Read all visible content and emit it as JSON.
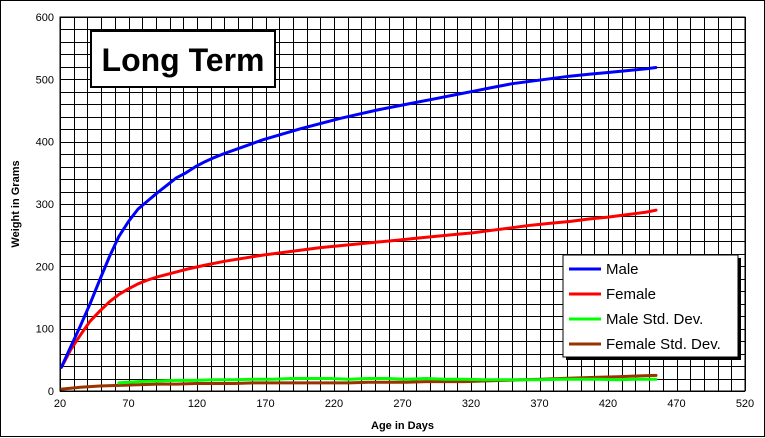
{
  "chart_data": {
    "type": "line",
    "title": "Long Term",
    "xlabel": "Age in Days",
    "ylabel": "Weight in Grams",
    "xlim": [
      20,
      520
    ],
    "ylim": [
      0,
      600
    ],
    "x_ticks": [
      20,
      70,
      120,
      170,
      220,
      270,
      320,
      370,
      420,
      470,
      520
    ],
    "y_ticks": [
      0,
      100,
      200,
      300,
      400,
      500,
      600
    ],
    "x_minor_step": 10,
    "y_minor_step": 20,
    "grid": true,
    "legend_position": "bottom-right",
    "background": "#ffffff",
    "series": [
      {
        "name": "Male",
        "color": "#0000ff",
        "x": [
          21,
          28,
          35,
          42,
          49,
          56,
          63,
          70,
          77,
          84,
          91,
          98,
          105,
          112,
          119,
          126,
          133,
          140,
          154,
          168,
          182,
          196,
          210,
          224,
          238,
          252,
          266,
          280,
          294,
          308,
          322,
          336,
          350,
          364,
          378,
          392,
          406,
          420,
          434,
          448,
          455
        ],
        "values": [
          38,
          72,
          105,
          140,
          178,
          215,
          248,
          272,
          292,
          305,
          318,
          330,
          342,
          350,
          360,
          368,
          375,
          381,
          392,
          403,
          412,
          421,
          429,
          437,
          444,
          451,
          457,
          463,
          469,
          475,
          481,
          487,
          493,
          497,
          501,
          505,
          508,
          511,
          514,
          517,
          519
        ]
      },
      {
        "name": "Female",
        "color": "#ff0000",
        "x": [
          21,
          28,
          35,
          42,
          49,
          56,
          63,
          70,
          77,
          84,
          91,
          98,
          112,
          126,
          140,
          154,
          168,
          182,
          196,
          210,
          224,
          238,
          252,
          266,
          280,
          294,
          308,
          322,
          336,
          350,
          364,
          378,
          392,
          406,
          420,
          434,
          448,
          455
        ],
        "values": [
          38,
          67,
          90,
          112,
          128,
          143,
          155,
          164,
          172,
          178,
          183,
          187,
          195,
          202,
          208,
          213,
          218,
          222,
          226,
          230,
          233,
          236,
          239,
          242,
          245,
          248,
          251,
          254,
          258,
          262,
          266,
          269,
          272,
          276,
          279,
          283,
          287,
          290
        ]
      },
      {
        "name": "Male Std. Dev.",
        "color": "#00ff00",
        "x": [
          63,
          77,
          91,
          105,
          119,
          133,
          147,
          161,
          175,
          189,
          203,
          217,
          231,
          245,
          259,
          273,
          287,
          301,
          315,
          329,
          343,
          357,
          371,
          385,
          399,
          413,
          427,
          441,
          455
        ],
        "values": [
          13,
          15,
          16,
          17,
          17,
          18,
          18,
          19,
          19,
          20,
          20,
          20,
          19,
          20,
          20,
          19,
          20,
          19,
          19,
          18,
          18,
          18,
          18,
          19,
          19,
          19,
          18,
          19,
          19
        ]
      },
      {
        "name": "Female Std. Dev.",
        "color": "#993300",
        "x": [
          21,
          35,
          49,
          63,
          77,
          91,
          105,
          119,
          133,
          147,
          161,
          175,
          189,
          203,
          217,
          231,
          245,
          259,
          273,
          287,
          301,
          315,
          329,
          343,
          357,
          371,
          385,
          399,
          413,
          427,
          441,
          455
        ],
        "values": [
          3,
          6,
          8,
          9,
          10,
          11,
          11,
          12,
          12,
          12,
          13,
          13,
          13,
          13,
          13,
          13,
          14,
          14,
          14,
          15,
          15,
          15,
          16,
          17,
          18,
          19,
          20,
          21,
          22,
          23,
          24,
          25
        ]
      }
    ]
  }
}
